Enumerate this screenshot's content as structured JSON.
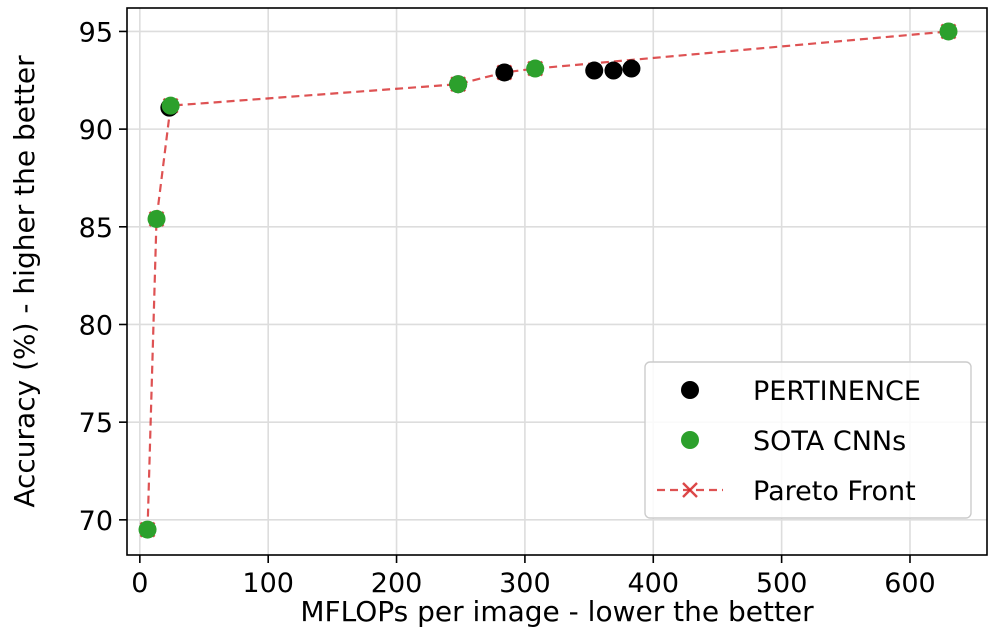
{
  "chart_data": {
    "type": "scatter",
    "title": "",
    "xlabel": "MFLOPs per image - lower the better",
    "ylabel": "Accuracy (%) - higher the better",
    "xlim": [
      -10,
      660
    ],
    "ylim": [
      68.2,
      96.2
    ],
    "xticks": [
      0,
      100,
      200,
      300,
      400,
      500,
      600
    ],
    "yticks": [
      70,
      75,
      80,
      85,
      90,
      95
    ],
    "grid": true,
    "legend_position": "bottom-right",
    "series": [
      {
        "name": "PERTINENCE",
        "kind": "scatter",
        "color": "#000000",
        "points": [
          [
            23,
            91.1
          ],
          [
            248,
            92.3
          ],
          [
            284,
            92.9
          ],
          [
            354,
            93.0
          ],
          [
            369,
            93.0
          ],
          [
            383,
            93.1
          ]
        ]
      },
      {
        "name": "SOTA CNNs",
        "kind": "scatter",
        "color": "#2ca02c",
        "points": [
          [
            6,
            69.5
          ],
          [
            13,
            85.4
          ],
          [
            24,
            91.2
          ],
          [
            248,
            92.3
          ],
          [
            308,
            93.1
          ],
          [
            630,
            95.0
          ]
        ]
      },
      {
        "name": "Pareto Front",
        "kind": "line",
        "color": "#d62728",
        "points": [
          [
            6,
            69.5
          ],
          [
            13,
            85.4
          ],
          [
            24,
            91.2
          ],
          [
            248,
            92.3
          ],
          [
            284,
            92.9
          ],
          [
            308,
            93.1
          ],
          [
            630,
            95.0
          ]
        ]
      }
    ]
  }
}
